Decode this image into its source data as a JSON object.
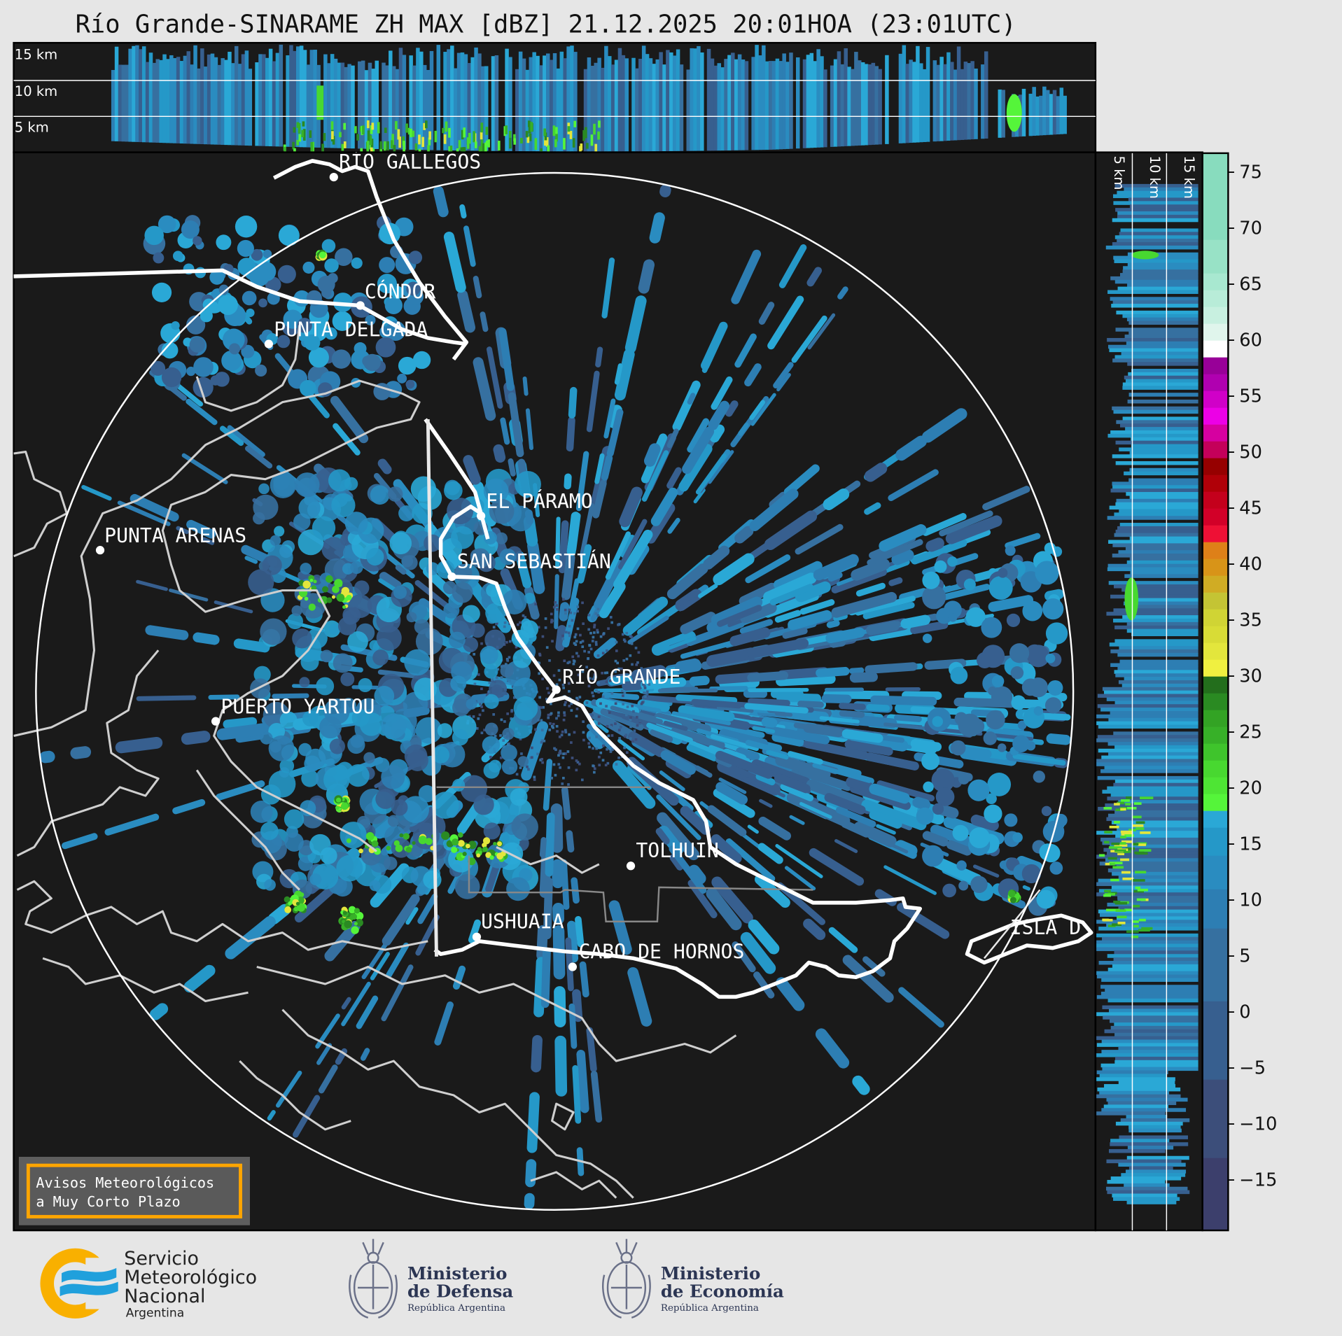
{
  "title": "Río Grande-SINARAME ZH MAX [dBZ] 21.12.2025 20:01HOA (23:01UTC)",
  "top_panel": {
    "height_labels": [
      "15 km",
      "10 km",
      "5 km"
    ]
  },
  "side_panel": {
    "height_labels": [
      "5 km",
      "10 km",
      "15 km"
    ]
  },
  "map": {
    "background": "#1a1a1a",
    "cities": [
      {
        "name": "RÍO GALLEGOS"
      },
      {
        "name": "CÓNDOR"
      },
      {
        "name": "PUNTA DELGADA"
      },
      {
        "name": "EL PÁRAMO"
      },
      {
        "name": "PUNTA ARENAS"
      },
      {
        "name": "SAN SEBASTIÁN"
      },
      {
        "name": "RÍO GRANDE"
      },
      {
        "name": "PUERTO YARTOU"
      },
      {
        "name": "TOLHUIN"
      },
      {
        "name": "USHUAIA"
      },
      {
        "name": "CABO DE HORNOS"
      },
      {
        "name": "ISLA D"
      }
    ],
    "range_ring": "radar coverage",
    "notice": {
      "line1": "Avisos Meteorológicos",
      "line2": "a Muy Corto Plazo",
      "border_color": "#ffa500"
    }
  },
  "colorbar": {
    "unit": "dBZ",
    "range": [
      -19.5,
      76.7
    ],
    "ticks": [
      "75",
      "70",
      "65",
      "60",
      "55",
      "50",
      "45",
      "40",
      "35",
      "30",
      "25",
      "20",
      "15",
      "10",
      "5",
      "0",
      "−5",
      "−10",
      "−15"
    ],
    "tick_values": [
      75,
      70,
      65,
      60,
      55,
      50,
      45,
      40,
      35,
      30,
      25,
      20,
      15,
      10,
      5,
      0,
      -5,
      -10,
      -15
    ],
    "stops": [
      [
        -19.5,
        "#3c3f6c"
      ],
      [
        -13,
        "#3c4e7a"
      ],
      [
        -6,
        "#375f8f"
      ],
      [
        1,
        "#3670a0"
      ],
      [
        7.5,
        "#2d7eb3"
      ],
      [
        11,
        "#2a8cc0"
      ],
      [
        14,
        "#2598c8"
      ],
      [
        16.5,
        "#2aa8d6"
      ],
      [
        18,
        "#55f53a"
      ],
      [
        19.5,
        "#4ee534"
      ],
      [
        21,
        "#48d830"
      ],
      [
        22.5,
        "#3fc42c"
      ],
      [
        24,
        "#37b028"
      ],
      [
        25.5,
        "#33a324"
      ],
      [
        27,
        "#2a8a22"
      ],
      [
        28.5,
        "#236e1c"
      ],
      [
        30,
        "#f0f040"
      ],
      [
        31.5,
        "#e3e63c"
      ],
      [
        33,
        "#d8dc36"
      ],
      [
        34.5,
        "#d0d434"
      ],
      [
        36,
        "#c4c434"
      ],
      [
        37.5,
        "#d0ac24"
      ],
      [
        39,
        "#d89418"
      ],
      [
        40.5,
        "#de8018"
      ],
      [
        42,
        "#ee1035"
      ],
      [
        43.5,
        "#d20028"
      ],
      [
        45,
        "#c4001c"
      ],
      [
        46.5,
        "#b00008"
      ],
      [
        48,
        "#960000"
      ],
      [
        49.5,
        "#c4005a"
      ],
      [
        51,
        "#d600a0"
      ],
      [
        52.5,
        "#ec00e6"
      ],
      [
        54,
        "#d000c8"
      ],
      [
        55.5,
        "#b000b0"
      ],
      [
        57,
        "#980098"
      ],
      [
        58.5,
        "#ffffff"
      ],
      [
        60,
        "#e0f5ec"
      ],
      [
        61.5,
        "#c8f0e0"
      ],
      [
        63,
        "#b8ecd8"
      ],
      [
        64.5,
        "#a8e8d0"
      ],
      [
        66,
        "#98e2c6"
      ],
      [
        69,
        "#88dcbe"
      ]
    ]
  },
  "footer": {
    "smn": {
      "line1": "Servicio",
      "line2": "Meteorológico",
      "line3": "Nacional",
      "line4": "Argentina",
      "orange": "#f9b000",
      "blue": "#20a0dc"
    },
    "defensa": {
      "line1": "Ministerio",
      "line2": "de Defensa",
      "line3": "República Argentina"
    },
    "economia": {
      "line1": "Ministerio",
      "line2": "de Economía",
      "line3": "República Argentina"
    },
    "navy": "#2b3553"
  }
}
